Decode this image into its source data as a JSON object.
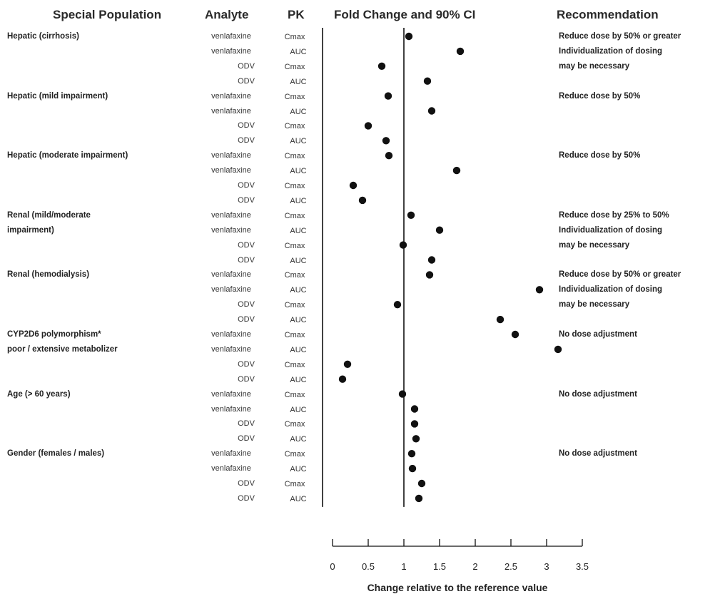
{
  "headers": {
    "population": "Special Population",
    "analyte": "Analyte",
    "pk": "PK",
    "fold": "Fold Change and 90% CI",
    "recommendation": "Recommendation"
  },
  "chart_data": {
    "type": "scatter",
    "x_axis_label": "Change relative to the reference value",
    "xlim": [
      0,
      3.5
    ],
    "ticks": [
      "0",
      "0.5",
      "1",
      "1.5",
      "2",
      "2.5",
      "3",
      "3.5"
    ],
    "reference_line": 1,
    "grid": false,
    "groups": [
      {
        "population": [
          "Hepatic (cirrhosis)"
        ],
        "recommendation": [
          "Reduce dose by 50% or greater",
          "Individualization of dosing",
          "may be necessary"
        ],
        "rows": [
          {
            "analyte": "venlafaxine",
            "pk": "Cmax",
            "value": 1.07
          },
          {
            "analyte": "venlafaxine",
            "pk": "AUC",
            "value": 1.79
          },
          {
            "analyte": "ODV",
            "pk": "Cmax",
            "value": 0.69
          },
          {
            "analyte": "ODV",
            "pk": "AUC",
            "value": 1.33
          }
        ]
      },
      {
        "population": [
          "Hepatic (mild impairment)"
        ],
        "recommendation": [
          "Reduce dose by 50%"
        ],
        "rows": [
          {
            "analyte": "venlafaxine",
            "pk": "Cmax",
            "value": 0.78
          },
          {
            "analyte": "venlafaxine",
            "pk": "AUC",
            "value": 1.39
          },
          {
            "analyte": "ODV",
            "pk": "Cmax",
            "value": 0.5
          },
          {
            "analyte": "ODV",
            "pk": "AUC",
            "value": 0.75
          }
        ]
      },
      {
        "population": [
          "Hepatic (moderate impairment)"
        ],
        "recommendation": [
          "Reduce dose by 50%"
        ],
        "rows": [
          {
            "analyte": "venlafaxine",
            "pk": "Cmax",
            "value": 0.79
          },
          {
            "analyte": "venlafaxine",
            "pk": "AUC",
            "value": 1.74
          },
          {
            "analyte": "ODV",
            "pk": "Cmax",
            "value": 0.29
          },
          {
            "analyte": "ODV",
            "pk": "AUC",
            "value": 0.42
          }
        ]
      },
      {
        "population": [
          "Renal (mild/moderate",
          "impairment)"
        ],
        "recommendation": [
          "Reduce dose by 25% to 50%",
          "Individualization of dosing",
          "may be necessary"
        ],
        "rows": [
          {
            "analyte": "venlafaxine",
            "pk": "Cmax",
            "value": 1.1
          },
          {
            "analyte": "venlafaxine",
            "pk": "AUC",
            "value": 1.5
          },
          {
            "analyte": "ODV",
            "pk": "Cmax",
            "value": 0.99
          },
          {
            "analyte": "ODV",
            "pk": "AUC",
            "value": 1.39
          }
        ]
      },
      {
        "population": [
          "Renal (hemodialysis)"
        ],
        "recommendation": [
          "Reduce dose by 50% or greater",
          "Individualization of dosing",
          "may be necessary"
        ],
        "rows": [
          {
            "analyte": "venlafaxine",
            "pk": "Cmax",
            "value": 1.36
          },
          {
            "analyte": "venlafaxine",
            "pk": "AUC",
            "value": 2.9
          },
          {
            "analyte": "ODV",
            "pk": "Cmax",
            "value": 0.91
          },
          {
            "analyte": "ODV",
            "pk": "AUC",
            "value": 2.35
          }
        ]
      },
      {
        "population": [
          "CYP2D6 polymorphism*",
          "poor / extensive metabolizer"
        ],
        "recommendation": [
          "No dose adjustment"
        ],
        "rows": [
          {
            "analyte": "venlafaxine",
            "pk": "Cmax",
            "value": 2.56
          },
          {
            "analyte": "venlafaxine",
            "pk": "AUC",
            "value": 3.16
          },
          {
            "analyte": "ODV",
            "pk": "Cmax",
            "value": 0.21
          },
          {
            "analyte": "ODV",
            "pk": "AUC",
            "value": 0.14
          }
        ]
      },
      {
        "population": [
          "Age (> 60 years)"
        ],
        "recommendation": [
          "No dose adjustment"
        ],
        "rows": [
          {
            "analyte": "venlafaxine",
            "pk": "Cmax",
            "value": 0.98
          },
          {
            "analyte": "venlafaxine",
            "pk": "AUC",
            "value": 1.15
          },
          {
            "analyte": "ODV",
            "pk": "Cmax",
            "value": 1.15
          },
          {
            "analyte": "ODV",
            "pk": "AUC",
            "value": 1.17
          }
        ]
      },
      {
        "population": [
          "Gender (females / males)"
        ],
        "recommendation": [
          "No dose adjustment"
        ],
        "rows": [
          {
            "analyte": "venlafaxine",
            "pk": "Cmax",
            "value": 1.11
          },
          {
            "analyte": "venlafaxine",
            "pk": "AUC",
            "value": 1.12
          },
          {
            "analyte": "ODV",
            "pk": "Cmax",
            "value": 1.25
          },
          {
            "analyte": "ODV",
            "pk": "AUC",
            "value": 1.21
          }
        ]
      }
    ]
  }
}
